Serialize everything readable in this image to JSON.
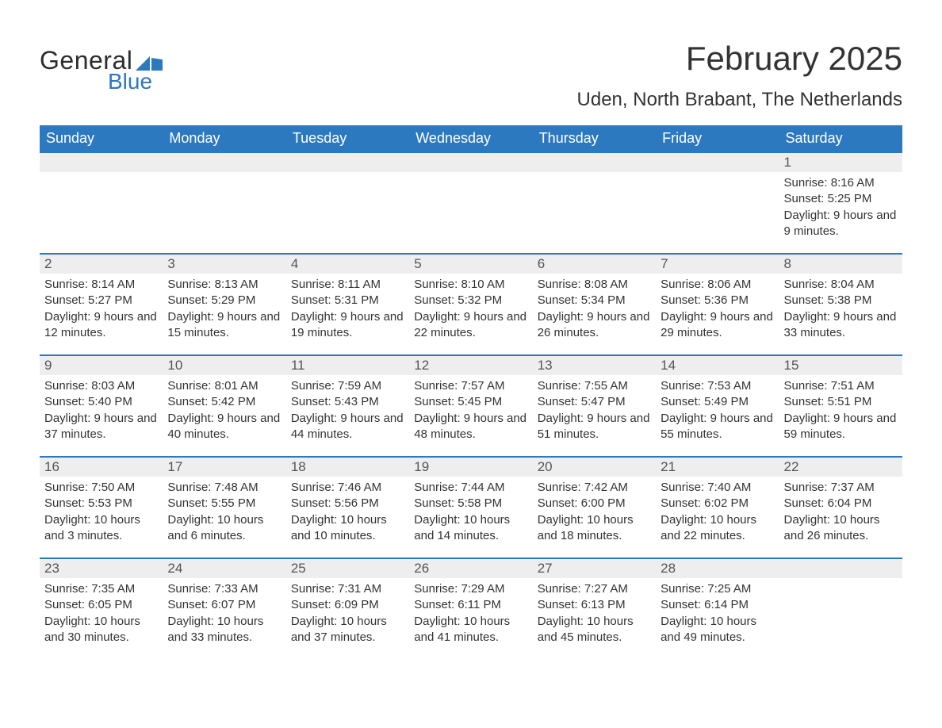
{
  "logo": {
    "word1": "General",
    "word2": "Blue",
    "brand_color": "#2d79c0",
    "text_color": "#2d2d2d"
  },
  "header": {
    "title": "February 2025",
    "location": "Uden, North Brabant, The Netherlands"
  },
  "colors": {
    "header_bg": "#2d79c0",
    "header_text": "#ffffff",
    "daynum_bg": "#eeeeee",
    "border_accent": "#2d79c0",
    "body_text": "#333333",
    "page_bg": "#ffffff"
  },
  "weekday_labels": [
    "Sunday",
    "Monday",
    "Tuesday",
    "Wednesday",
    "Thursday",
    "Friday",
    "Saturday"
  ],
  "field_labels": {
    "sunrise": "Sunrise: ",
    "sunset": "Sunset: ",
    "daylight": "Daylight: "
  },
  "weeks": [
    [
      null,
      null,
      null,
      null,
      null,
      null,
      {
        "day": "1",
        "sunrise": "8:16 AM",
        "sunset": "5:25 PM",
        "daylight": "9 hours and 9 minutes."
      }
    ],
    [
      {
        "day": "2",
        "sunrise": "8:14 AM",
        "sunset": "5:27 PM",
        "daylight": "9 hours and 12 minutes."
      },
      {
        "day": "3",
        "sunrise": "8:13 AM",
        "sunset": "5:29 PM",
        "daylight": "9 hours and 15 minutes."
      },
      {
        "day": "4",
        "sunrise": "8:11 AM",
        "sunset": "5:31 PM",
        "daylight": "9 hours and 19 minutes."
      },
      {
        "day": "5",
        "sunrise": "8:10 AM",
        "sunset": "5:32 PM",
        "daylight": "9 hours and 22 minutes."
      },
      {
        "day": "6",
        "sunrise": "8:08 AM",
        "sunset": "5:34 PM",
        "daylight": "9 hours and 26 minutes."
      },
      {
        "day": "7",
        "sunrise": "8:06 AM",
        "sunset": "5:36 PM",
        "daylight": "9 hours and 29 minutes."
      },
      {
        "day": "8",
        "sunrise": "8:04 AM",
        "sunset": "5:38 PM",
        "daylight": "9 hours and 33 minutes."
      }
    ],
    [
      {
        "day": "9",
        "sunrise": "8:03 AM",
        "sunset": "5:40 PM",
        "daylight": "9 hours and 37 minutes."
      },
      {
        "day": "10",
        "sunrise": "8:01 AM",
        "sunset": "5:42 PM",
        "daylight": "9 hours and 40 minutes."
      },
      {
        "day": "11",
        "sunrise": "7:59 AM",
        "sunset": "5:43 PM",
        "daylight": "9 hours and 44 minutes."
      },
      {
        "day": "12",
        "sunrise": "7:57 AM",
        "sunset": "5:45 PM",
        "daylight": "9 hours and 48 minutes."
      },
      {
        "day": "13",
        "sunrise": "7:55 AM",
        "sunset": "5:47 PM",
        "daylight": "9 hours and 51 minutes."
      },
      {
        "day": "14",
        "sunrise": "7:53 AM",
        "sunset": "5:49 PM",
        "daylight": "9 hours and 55 minutes."
      },
      {
        "day": "15",
        "sunrise": "7:51 AM",
        "sunset": "5:51 PM",
        "daylight": "9 hours and 59 minutes."
      }
    ],
    [
      {
        "day": "16",
        "sunrise": "7:50 AM",
        "sunset": "5:53 PM",
        "daylight": "10 hours and 3 minutes."
      },
      {
        "day": "17",
        "sunrise": "7:48 AM",
        "sunset": "5:55 PM",
        "daylight": "10 hours and 6 minutes."
      },
      {
        "day": "18",
        "sunrise": "7:46 AM",
        "sunset": "5:56 PM",
        "daylight": "10 hours and 10 minutes."
      },
      {
        "day": "19",
        "sunrise": "7:44 AM",
        "sunset": "5:58 PM",
        "daylight": "10 hours and 14 minutes."
      },
      {
        "day": "20",
        "sunrise": "7:42 AM",
        "sunset": "6:00 PM",
        "daylight": "10 hours and 18 minutes."
      },
      {
        "day": "21",
        "sunrise": "7:40 AM",
        "sunset": "6:02 PM",
        "daylight": "10 hours and 22 minutes."
      },
      {
        "day": "22",
        "sunrise": "7:37 AM",
        "sunset": "6:04 PM",
        "daylight": "10 hours and 26 minutes."
      }
    ],
    [
      {
        "day": "23",
        "sunrise": "7:35 AM",
        "sunset": "6:05 PM",
        "daylight": "10 hours and 30 minutes."
      },
      {
        "day": "24",
        "sunrise": "7:33 AM",
        "sunset": "6:07 PM",
        "daylight": "10 hours and 33 minutes."
      },
      {
        "day": "25",
        "sunrise": "7:31 AM",
        "sunset": "6:09 PM",
        "daylight": "10 hours and 37 minutes."
      },
      {
        "day": "26",
        "sunrise": "7:29 AM",
        "sunset": "6:11 PM",
        "daylight": "10 hours and 41 minutes."
      },
      {
        "day": "27",
        "sunrise": "7:27 AM",
        "sunset": "6:13 PM",
        "daylight": "10 hours and 45 minutes."
      },
      {
        "day": "28",
        "sunrise": "7:25 AM",
        "sunset": "6:14 PM",
        "daylight": "10 hours and 49 minutes."
      },
      null
    ]
  ]
}
